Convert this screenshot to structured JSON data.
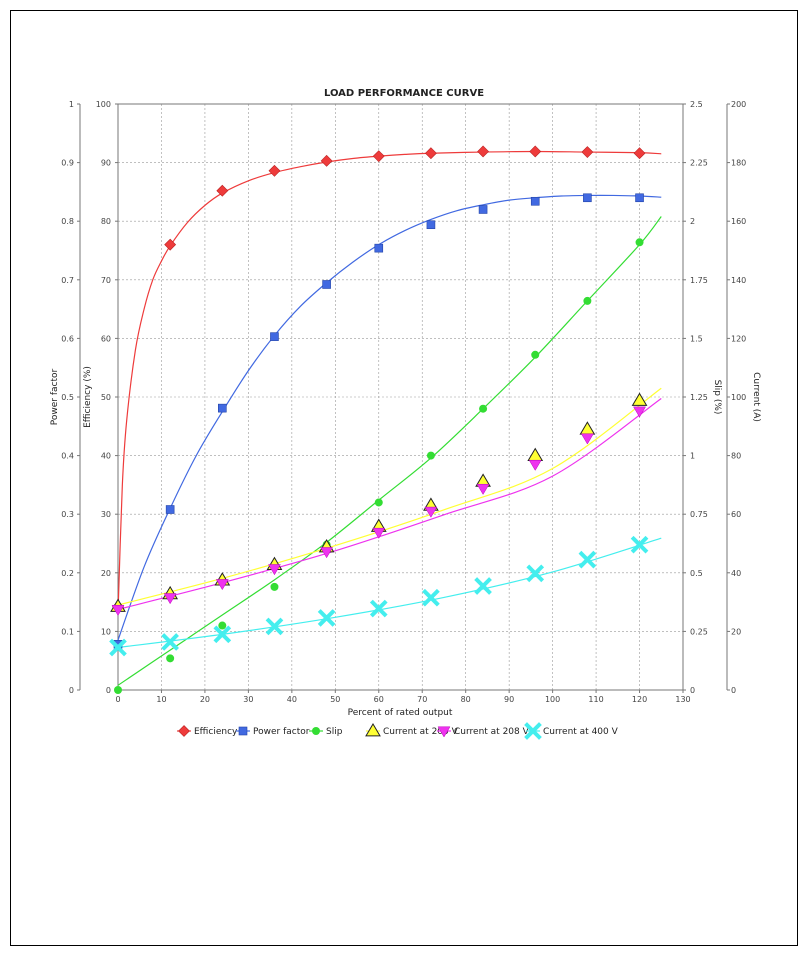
{
  "chart_data": {
    "type": "scatter",
    "title": "LOAD PERFORMANCE CURVE",
    "xlabel": "Percent of rated output",
    "xlim": [
      0,
      130
    ],
    "xticks": [
      "0",
      "10",
      "20",
      "30",
      "40",
      "50",
      "60",
      "70",
      "80",
      "90",
      "100",
      "110",
      "120",
      "130"
    ],
    "grid": true,
    "legend_position": "bottom",
    "axes": {
      "power_factor": {
        "label": "Power factor",
        "side": "left-outer",
        "lim": [
          0,
          1
        ],
        "ticks": [
          "0",
          "0.1",
          "0.2",
          "0.3",
          "0.4",
          "0.5",
          "0.6",
          "0.7",
          "0.8",
          "0.9",
          "1"
        ]
      },
      "efficiency": {
        "label": "Efficiency (%)",
        "side": "left-inner",
        "lim": [
          0,
          100
        ],
        "ticks": [
          "0",
          "10",
          "20",
          "30",
          "40",
          "50",
          "60",
          "70",
          "80",
          "90",
          "100"
        ]
      },
      "slip": {
        "label": "Slip (%)",
        "side": "right-inner",
        "lim": [
          0,
          2.5
        ],
        "ticks": [
          "0",
          "0.25",
          "0.5",
          "0.75",
          "1",
          "1.25",
          "1.5",
          "1.75",
          "2",
          "2.25",
          "2.5"
        ]
      },
      "current": {
        "label": "Current (A)",
        "side": "right-outer",
        "lim": [
          0,
          200
        ],
        "ticks": [
          "0",
          "20",
          "40",
          "60",
          "80",
          "100",
          "120",
          "140",
          "160",
          "180",
          "200"
        ]
      }
    },
    "series": [
      {
        "name": "Efficiency",
        "axis": "efficiency",
        "color": "#ee3b3b",
        "marker": "diamond",
        "x": [
          0,
          12,
          24,
          36,
          48,
          60,
          72,
          84,
          96,
          108,
          120
        ],
        "y": [
          14.2,
          76,
          85.2,
          88.6,
          90.3,
          91.1,
          91.6,
          91.9,
          91.9,
          91.8,
          91.6
        ],
        "curve_x": [
          0,
          1,
          2,
          4,
          6,
          8,
          10,
          12,
          16,
          20,
          24,
          30,
          36,
          42,
          48,
          54,
          60,
          66,
          72,
          84,
          96,
          108,
          120,
          125
        ],
        "curve_y": [
          13,
          35,
          46,
          58,
          65,
          70,
          73.2,
          75.8,
          79.8,
          82.7,
          84.8,
          86.9,
          88.3,
          89.3,
          90.1,
          90.7,
          91.1,
          91.4,
          91.6,
          91.8,
          91.9,
          91.8,
          91.7,
          91.5
        ]
      },
      {
        "name": "Power factor",
        "axis": "power_factor",
        "color": "#4169e1",
        "marker": "square",
        "x": [
          0,
          12,
          24,
          36,
          48,
          60,
          72,
          84,
          96,
          108,
          120
        ],
        "y": [
          0.078,
          0.308,
          0.481,
          0.603,
          0.692,
          0.754,
          0.794,
          0.82,
          0.834,
          0.84,
          0.84
        ],
        "curve_x": [
          0,
          6,
          12,
          18,
          24,
          30,
          36,
          42,
          48,
          54,
          60,
          66,
          72,
          78,
          84,
          90,
          96,
          102,
          108,
          114,
          120,
          125
        ],
        "curve_y": [
          0.085,
          0.21,
          0.31,
          0.4,
          0.475,
          0.545,
          0.605,
          0.655,
          0.695,
          0.73,
          0.76,
          0.784,
          0.803,
          0.818,
          0.828,
          0.836,
          0.84,
          0.843,
          0.844,
          0.844,
          0.843,
          0.841
        ]
      },
      {
        "name": "Slip",
        "axis": "slip",
        "color": "#33dd33",
        "marker": "circle",
        "x": [
          0,
          12,
          24,
          36,
          48,
          60,
          72,
          84,
          96,
          108,
          120
        ],
        "y": [
          0,
          0.135,
          0.275,
          0.44,
          0.62,
          0.8,
          1.0,
          1.2,
          1.43,
          1.66,
          1.91
        ],
        "curve_x": [
          0,
          12,
          24,
          36,
          48,
          60,
          72,
          84,
          96,
          108,
          120,
          125
        ],
        "curve_y": [
          0.02,
          0.17,
          0.32,
          0.47,
          0.63,
          0.81,
          0.99,
          1.2,
          1.42,
          1.66,
          1.9,
          2.02
        ]
      },
      {
        "name": "Current at 200 V",
        "axis": "current",
        "color": "#ffff33",
        "edge": "#222222",
        "marker": "triangle-up",
        "x": [
          0,
          12,
          24,
          36,
          48,
          60,
          72,
          84,
          96,
          108,
          120
        ],
        "y": [
          28.5,
          32.8,
          37.5,
          42.8,
          48.8,
          55.8,
          63,
          71.2,
          80,
          89,
          98.8
        ],
        "curve_x": [
          0,
          25,
          50,
          75,
          100,
          125
        ],
        "curve_y": [
          29,
          38.5,
          49.3,
          61.5,
          75.6,
          103
        ]
      },
      {
        "name": "Current at 208 V",
        "axis": "current",
        "color": "#ee33ee",
        "marker": "triangle-down",
        "x": [
          0,
          12,
          24,
          36,
          48,
          60,
          72,
          84,
          96,
          108,
          120
        ],
        "y": [
          27.5,
          31.5,
          36.3,
          41.4,
          47.2,
          53.8,
          61,
          68.8,
          77,
          86,
          95.2
        ],
        "curve_x": [
          0,
          25,
          50,
          75,
          100,
          125
        ],
        "curve_y": [
          27.5,
          37,
          47.5,
          59.8,
          73,
          99.5
        ]
      },
      {
        "name": "Current at 400 V",
        "axis": "current",
        "color": "#44eeee",
        "marker": "x",
        "x": [
          0,
          12,
          24,
          36,
          48,
          60,
          72,
          84,
          96,
          108,
          120
        ],
        "y": [
          14.5,
          16.4,
          19,
          21.7,
          24.6,
          27.8,
          31.5,
          35.5,
          39.8,
          44.5,
          49.6
        ],
        "curve_x": [
          0,
          25,
          50,
          75,
          100,
          125
        ],
        "curve_y": [
          14.5,
          19.2,
          24.8,
          31.6,
          40.3,
          51.8
        ]
      }
    ]
  }
}
